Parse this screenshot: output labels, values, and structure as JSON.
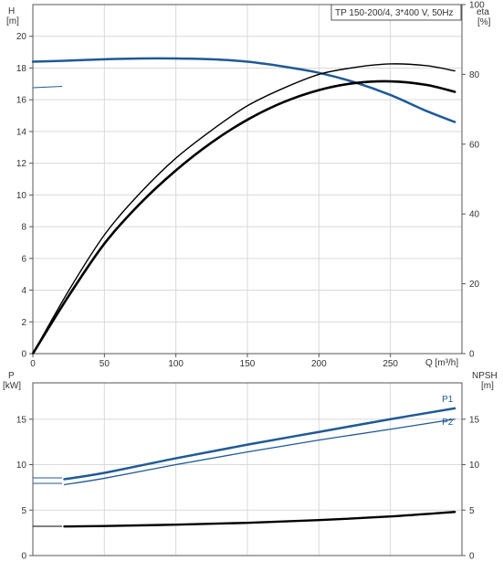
{
  "chart_data": [
    {
      "type": "line",
      "title": "TP 150-200/4, 3*400 V, 50Hz",
      "xlabel": "Q [m³/h]",
      "xlim": [
        0,
        300
      ],
      "x_ticks": [
        "0",
        "50",
        "100",
        "150",
        "200",
        "250"
      ],
      "left_axis": {
        "label_top": "H",
        "label_unit": "[m]",
        "ylim": [
          0,
          22
        ],
        "ticks": [
          "0",
          "2",
          "4",
          "6",
          "8",
          "10",
          "12",
          "14",
          "16",
          "18",
          "20"
        ]
      },
      "right_axis": {
        "label_top": "eta",
        "label_unit": "[%]",
        "ylim": [
          0,
          100
        ],
        "ticks": [
          "0",
          "20",
          "40",
          "60",
          "80",
          "100"
        ]
      },
      "grid": true,
      "series": [
        {
          "axis": "left",
          "color": "#1f5a96",
          "width": 2.5,
          "x": [
            0,
            20,
            50,
            75,
            100,
            125,
            150,
            175,
            200,
            225,
            250,
            275,
            295
          ],
          "y": [
            18.4,
            18.45,
            18.55,
            18.6,
            18.6,
            18.55,
            18.4,
            18.1,
            17.7,
            17.1,
            16.3,
            15.3,
            14.6
          ]
        },
        {
          "axis": "right",
          "color": "#000000",
          "width": 1.4,
          "x": [
            0,
            25,
            50,
            75,
            100,
            125,
            150,
            175,
            200,
            225,
            250,
            275,
            295
          ],
          "y": [
            0,
            18,
            34,
            46,
            56,
            64,
            71,
            76,
            80,
            82,
            83,
            82.5,
            81
          ]
        },
        {
          "axis": "right",
          "color": "#000000",
          "width": 2.6,
          "x": [
            0,
            25,
            50,
            75,
            100,
            125,
            150,
            175,
            200,
            225,
            250,
            275,
            295
          ],
          "y": [
            0,
            16.5,
            31.5,
            43,
            52.5,
            60.5,
            67,
            72,
            75.5,
            77.5,
            78,
            77,
            75
          ]
        }
      ]
    },
    {
      "type": "line",
      "xlim": [
        0,
        300
      ],
      "left_axis": {
        "label_top": "P",
        "label_unit": "[kW]",
        "ylim": [
          0,
          19
        ],
        "ticks": [
          "0",
          "5",
          "10",
          "15"
        ]
      },
      "right_axis": {
        "label_top": "NPSH",
        "label_unit": "[m]",
        "ylim": [
          0,
          19
        ],
        "ticks": [
          "0",
          "5",
          "10",
          "15"
        ]
      },
      "grid": true,
      "series": [
        {
          "name": "P1",
          "axis": "left",
          "color": "#1f5a96",
          "width": 2.5,
          "x": [
            22,
            50,
            100,
            150,
            200,
            250,
            295
          ],
          "y": [
            8.4,
            9.1,
            10.7,
            12.2,
            13.6,
            15.0,
            16.2
          ]
        },
        {
          "name": "P2",
          "axis": "left",
          "color": "#1f5a96",
          "width": 1.3,
          "x": [
            22,
            50,
            100,
            150,
            200,
            250,
            295
          ],
          "y": [
            7.8,
            8.5,
            10.0,
            11.4,
            12.7,
            13.9,
            15.0
          ]
        },
        {
          "axis": "right",
          "color": "#000000",
          "width": 2.4,
          "x": [
            22,
            50,
            100,
            150,
            200,
            250,
            295
          ],
          "y": [
            3.2,
            3.25,
            3.4,
            3.6,
            3.9,
            4.3,
            4.8
          ]
        }
      ],
      "annotations": [
        {
          "text": "P1",
          "x": 286,
          "y": 16.9
        },
        {
          "text": "P2",
          "x": 286,
          "y": 14.4
        }
      ]
    }
  ]
}
